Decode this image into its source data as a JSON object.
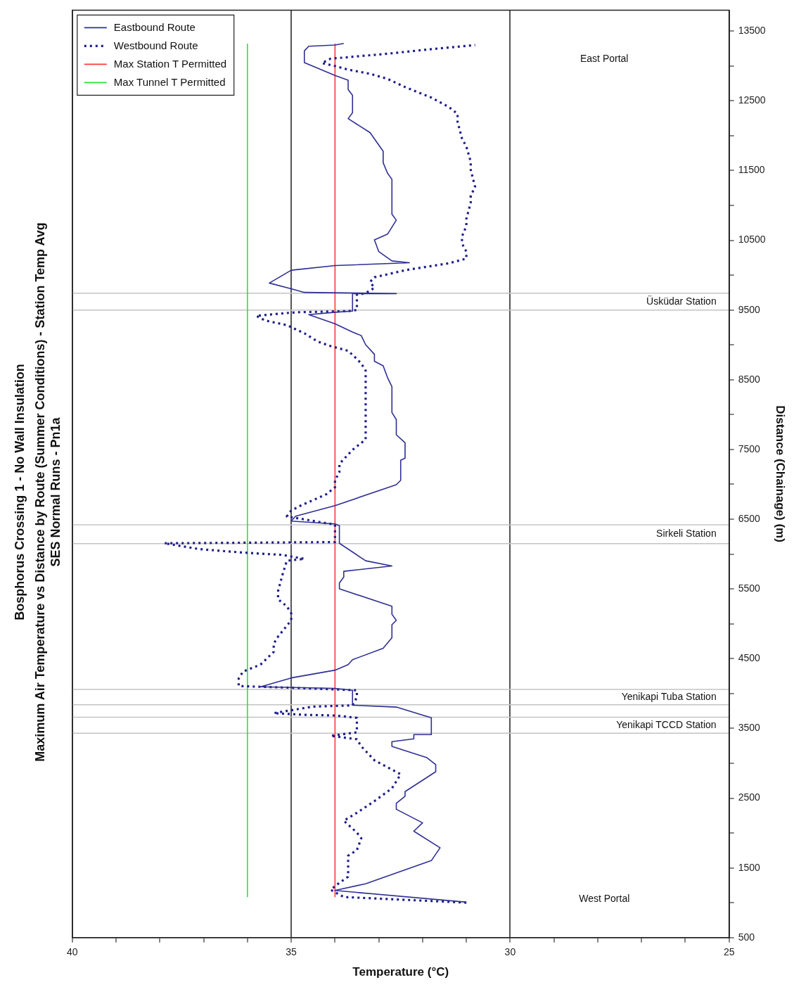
{
  "chart_data": {
    "type": "line",
    "orientation": "horizontal",
    "title": "Bosphorus Crossing 1 - No Wall Insulation",
    "subtitle": "Maximum Air Temperature vs Distance by Route (Summer Conditions) - Station Temp Avg\nSES Normal Runs - Pn1a",
    "ylabel": "Distance (Chainage) (m)",
    "xlabel": "Temperature (°C)",
    "ylim": [
      500,
      13800
    ],
    "yticks": [
      500,
      {
        "value": 1000,
        "label": null
      },
      1500,
      {
        "value": 2000,
        "label": null
      },
      2500,
      {
        "value": 3000,
        "label": null
      },
      3500,
      {
        "value": 4000,
        "label": null
      },
      4500,
      {
        "value": 5000,
        "label": null
      },
      5500,
      {
        "value": 6000,
        "label": null
      },
      6500,
      {
        "value": 7000,
        "label": null
      },
      7500,
      {
        "value": 8000,
        "label": null
      },
      8500,
      {
        "value": 9000,
        "label": null
      },
      9500,
      {
        "value": 10000,
        "label": null
      },
      10500,
      {
        "value": 11000,
        "label": null
      },
      11500,
      {
        "value": 12000,
        "label": null
      },
      12500,
      {
        "value": 13000,
        "label": null
      },
      13500
    ],
    "xlim": [
      40,
      25
    ],
    "xticks": [
      25,
      {
        "value": 26,
        "label": null
      },
      {
        "value": 27,
        "label": null
      },
      {
        "value": 28,
        "label": null
      },
      {
        "value": 29,
        "label": null
      },
      30,
      {
        "value": 31,
        "label": null
      },
      {
        "value": 32,
        "label": null
      },
      {
        "value": 33,
        "label": null
      },
      {
        "value": 34,
        "label": null
      },
      35,
      {
        "value": 36,
        "label": null
      },
      {
        "value": 37,
        "label": null
      },
      {
        "value": 38,
        "label": null
      },
      {
        "value": 39,
        "label": null
      },
      40
    ],
    "grid": "x",
    "legend": "top left",
    "marker": "none",
    "series": [
      {
        "name": "Eastbound Route",
        "color": "#2e2e96",
        "line_style": "solid",
        "x": [
          1009,
          1176,
          1273,
          1604,
          1788,
          2026,
          2146,
          2340,
          2427,
          2527,
          2594,
          2879,
          2980,
          3080,
          3243,
          3310,
          3351,
          3411,
          3411,
          3652,
          3806,
          3833,
          4047,
          4074,
          4097,
          4224,
          4335,
          4415,
          4485,
          4649,
          4800,
          4987,
          5050,
          5137,
          5251,
          5502,
          5585,
          5670,
          5753,
          5830,
          5904,
          6155,
          6406,
          6432,
          6473,
          6543,
          6694,
          6995,
          7058,
          7346,
          7376,
          7597,
          7711,
          7928,
          8030,
          8400,
          8530,
          8700,
          8765,
          8865,
          9002,
          9133,
          9183,
          9303,
          9434,
          9467,
          9484,
          9735,
          9735,
          9752,
          9805,
          9886,
          10070,
          10137,
          10177,
          10204,
          10337,
          10505,
          10588,
          10789,
          10873,
          11374,
          11461,
          11611,
          11776,
          12044,
          12244,
          12328,
          12579,
          12662,
          12796,
          12864,
          13048,
          13215,
          13282,
          13299,
          13322
        ],
        "values": [
          31.0,
          34.0,
          33.3,
          31.8,
          31.6,
          32.2,
          32.0,
          32.6,
          32.6,
          32.4,
          32.4,
          31.7,
          31.7,
          31.9,
          32.7,
          32.7,
          32.2,
          32.2,
          31.8,
          31.8,
          32.6,
          33.6,
          33.6,
          34.0,
          35.7,
          35.0,
          34.0,
          33.7,
          33.6,
          32.9,
          32.7,
          32.7,
          32.6,
          32.7,
          32.7,
          33.9,
          33.9,
          33.8,
          33.8,
          32.7,
          33.3,
          33.9,
          33.9,
          34.0,
          35.0,
          34.9,
          34.0,
          32.6,
          32.5,
          32.5,
          32.4,
          32.4,
          32.6,
          32.6,
          32.7,
          32.7,
          32.8,
          32.9,
          33.1,
          33.1,
          33.3,
          33.4,
          33.6,
          34.0,
          34.6,
          34.0,
          33.6,
          33.6,
          32.6,
          34.7,
          35.0,
          35.5,
          35.0,
          34.0,
          32.3,
          32.7,
          33.0,
          33.1,
          32.8,
          32.6,
          32.7,
          32.7,
          32.8,
          32.9,
          32.9,
          33.2,
          33.7,
          33.6,
          33.6,
          33.7,
          33.7,
          34.0,
          34.7,
          34.7,
          34.6,
          34.0,
          33.8
        ]
      },
      {
        "name": "Westbound Route",
        "color": "#1e1e8c",
        "line_style": "dotted",
        "x": [
          1002,
          1082,
          1186,
          1286,
          1373,
          1454,
          1574,
          1674,
          1755,
          1925,
          2006,
          2176,
          2290,
          2457,
          2641,
          2842,
          3043,
          3243,
          3344,
          3394,
          3444,
          3562,
          3652,
          3685,
          3695,
          3719,
          3813,
          3830,
          3946,
          4047,
          4083,
          4097,
          4107,
          4214,
          4315,
          4415,
          4598,
          4716,
          4817,
          5050,
          5151,
          5251,
          5352,
          5469,
          5703,
          5904,
          5931,
          5988,
          6021,
          6071,
          6155,
          6172,
          6322,
          6422,
          6540,
          6623,
          6690,
          6857,
          6958,
          7058,
          7175,
          7293,
          7494,
          7644,
          8631,
          8731,
          8798,
          8915,
          8982,
          9050,
          9166,
          9283,
          9350,
          9417,
          9467,
          9484,
          9500,
          9718,
          9742,
          9818,
          9903,
          9969,
          10070,
          10120,
          10170,
          10237,
          10337,
          10454,
          10554,
          10705,
          10806,
          11040,
          11140,
          11264,
          11508,
          11628,
          11843,
          11960,
          12194,
          12312,
          12411,
          12546,
          12697,
          12814,
          12887,
          12947,
          12998,
          13041,
          13104,
          13131,
          13181,
          13241,
          13299
        ],
        "values": [
          31.0,
          33.8,
          34.1,
          33.9,
          33.7,
          33.7,
          33.7,
          33.7,
          33.5,
          33.4,
          33.5,
          33.8,
          33.5,
          33.1,
          32.7,
          32.5,
          33.1,
          33.4,
          33.5,
          34.1,
          33.5,
          33.5,
          33.5,
          34.0,
          34.7,
          35.4,
          34.5,
          33.6,
          33.5,
          33.5,
          35.0,
          35.7,
          36.2,
          36.2,
          36.1,
          35.7,
          35.4,
          35.4,
          35.3,
          35.0,
          35.0,
          35.1,
          35.3,
          35.3,
          35.2,
          35.1,
          34.7,
          35.2,
          36.1,
          37.1,
          37.9,
          34.0,
          34.0,
          34.0,
          35.1,
          35.0,
          34.8,
          34.2,
          34.0,
          34.0,
          33.9,
          33.9,
          33.6,
          33.3,
          33.3,
          33.4,
          33.5,
          33.7,
          34.1,
          34.4,
          34.7,
          35.1,
          35.6,
          35.8,
          34.9,
          33.7,
          33.5,
          33.5,
          33.3,
          33.1,
          33.2,
          33.1,
          32.4,
          31.9,
          31.4,
          31.0,
          31.0,
          31.1,
          31.1,
          31.0,
          31.0,
          30.9,
          30.9,
          30.8,
          30.9,
          30.9,
          31.0,
          31.1,
          31.2,
          31.2,
          31.4,
          31.8,
          32.4,
          32.8,
          33.2,
          33.7,
          34.0,
          34.3,
          34.1,
          33.6,
          32.7,
          31.8,
          30.8
        ]
      },
      {
        "name": "Max Station T Permitted",
        "color": "#ff3b3b",
        "line_style": "solid",
        "x": [
          1080,
          13320
        ],
        "values": [
          34,
          34
        ]
      },
      {
        "name": "Max Tunnel T Permitted",
        "color": "#33e033",
        "line_style": "solid",
        "x": [
          1080,
          13320
        ],
        "values": [
          36,
          36
        ]
      }
    ],
    "ref_lines": [
      {
        "axis": "y",
        "value": 3430,
        "label": "Yenikapi TCCD Station",
        "color": "#c4c4c4"
      },
      {
        "axis": "y",
        "value": 3660,
        "color": "#c4c4c4"
      },
      {
        "axis": "y",
        "value": 3840,
        "label": "Yenikapi Tuba Station",
        "color": "#c4c4c4"
      },
      {
        "axis": "y",
        "value": 4060,
        "color": "#c4c4c4"
      },
      {
        "axis": "y",
        "value": 6150,
        "label": "Sirkeli Station",
        "color": "#c4c4c4"
      },
      {
        "axis": "y",
        "value": 6420,
        "color": "#c4c4c4"
      },
      {
        "axis": "y",
        "value": 9500,
        "label": "Üsküdar Station",
        "color": "#c4c4c4"
      },
      {
        "axis": "y",
        "value": 9740,
        "color": "#c4c4c4"
      }
    ],
    "annotations": [
      "West Portal",
      "East Portal"
    ]
  }
}
